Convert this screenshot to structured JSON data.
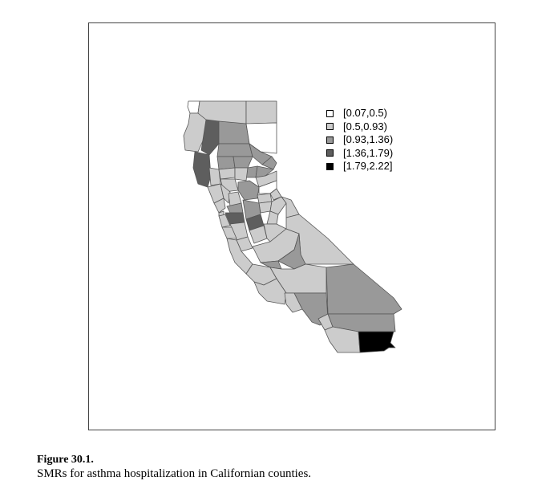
{
  "legend": {
    "items": [
      {
        "label": "[0.07,0.5)",
        "color": "#ffffff"
      },
      {
        "label": "[0.5,0.93)",
        "color": "#cccccc"
      },
      {
        "label": "[0.93,1.36)",
        "color": "#999999"
      },
      {
        "label": "[1.36,1.79)",
        "color": "#5e5e5e"
      },
      {
        "label": "[1.79,2.22]",
        "color": "#000000"
      }
    ]
  },
  "caption": {
    "title": "Figure 30.1.",
    "text": "SMRs for asthma hospitalization in Californian counties."
  }
}
